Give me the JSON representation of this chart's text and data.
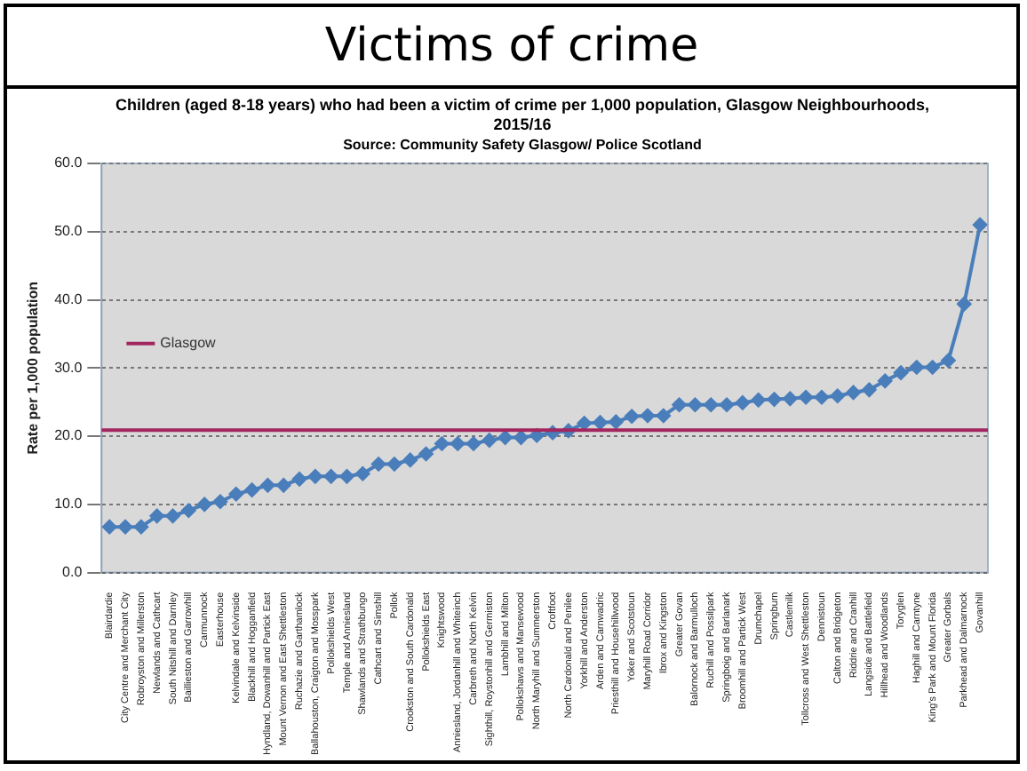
{
  "chart_data": {
    "type": "line",
    "title": "Victims of crime",
    "subtitle": "Children (aged 8-18 years) who had been a victim of crime per 1,000 population, Glasgow Neighbourhoods, 2015/16",
    "annotations": [
      "Source: Community Safety Glasgow/ Police Scotland"
    ],
    "ylabel": "Rate per 1,000 population",
    "categories": [
      "Blairdardie",
      "City Centre and Merchant City",
      "Robroyston and Millerston",
      "Newlands and Cathcart",
      "South Nitshill and Darnley",
      "Baillieston and Garrowhill",
      "Carmunnock",
      "Easterhouse",
      "Kelvindale and Kelvinside",
      "Blackhill and Hogganfield",
      "Hyndland, Dowanhill and Partick East",
      "Mount Vernon and East Shettleston",
      "Ruchazie and Garthamlock",
      "Ballahouston, Craigton and Mosspark",
      "Pollokshields West",
      "Temple and Anniesland",
      "Shawlands and Strathbungo",
      "Cathcart and Simshill",
      "Pollok",
      "Crookston and South Cardonald",
      "Pollokshields East",
      "Knightswood",
      "Anniesland, Jordanhill and Whiteinch",
      "Carbreth and North Kelvin",
      "Sighthill, Roystonhill and Germiston",
      "Lambhill and Milton",
      "Pollokshaws and Mansewood",
      "North Maryhill and Summerston",
      "Croftfoot",
      "North Cardonald and Penilee",
      "Yorkhill and Anderston",
      "Arden and Carnwadric",
      "Priesthill and Househillwood",
      "Yoker and Scotstoun",
      "Maryhill Road Corridor",
      "Ibrox and Kingston",
      "Greater Govan",
      "Balornock and Barmulloch",
      "Ruchill and Possilpark",
      "Springboig and Barlanark",
      "Broomhill and Partick West",
      "Drumchapel",
      "Springburn",
      "Castlemilk",
      "Tollcross and West Shettleston",
      "Dennistoun",
      "Calton and Bridgeton",
      "Riddrie and Cranhill",
      "Langside and Battlefield",
      "Hillhead and Woodlands",
      "Toryglen",
      "Haghill and Carntyne",
      "King's Park and Mount Florida",
      "Greater Gorbals",
      "Parkhead and Dalmarnock",
      "Govanhill"
    ],
    "series": [
      {
        "color": "#4a7ebb",
        "values": [
          6.7,
          6.7,
          6.7,
          8.3,
          8.3,
          9.1,
          10.0,
          10.4,
          11.5,
          12.1,
          12.8,
          12.8,
          13.7,
          14.1,
          14.1,
          14.1,
          14.5,
          15.9,
          15.9,
          16.5,
          17.4,
          18.9,
          18.9,
          18.9,
          19.4,
          19.8,
          19.8,
          20.1,
          20.5,
          20.8,
          21.9,
          22.0,
          22.1,
          22.9,
          23.0,
          23.0,
          24.6,
          24.6,
          24.6,
          24.6,
          24.9,
          25.3,
          25.4,
          25.5,
          25.7,
          25.7,
          25.9,
          26.4,
          26.8,
          28.1,
          29.3,
          30.1,
          30.1,
          31.1,
          39.4,
          51.0
        ]
      }
    ],
    "ref_lines": [
      {
        "axis": "y",
        "value": 20.9,
        "label": "Glasgow",
        "color": "#a3275f"
      }
    ],
    "ylim": [
      0,
      60
    ],
    "yticks": [
      {
        "value": 0,
        "label": "0.0"
      },
      {
        "value": 10,
        "label": "10.0"
      },
      {
        "value": 20,
        "label": "20.0"
      },
      {
        "value": 30,
        "label": "30.0"
      },
      {
        "value": 40,
        "label": "40.0"
      },
      {
        "value": 50,
        "label": "50.0"
      },
      {
        "value": 60,
        "label": "60.0"
      }
    ],
    "grid": "y",
    "marker": "diamond",
    "line_style": "solid"
  }
}
